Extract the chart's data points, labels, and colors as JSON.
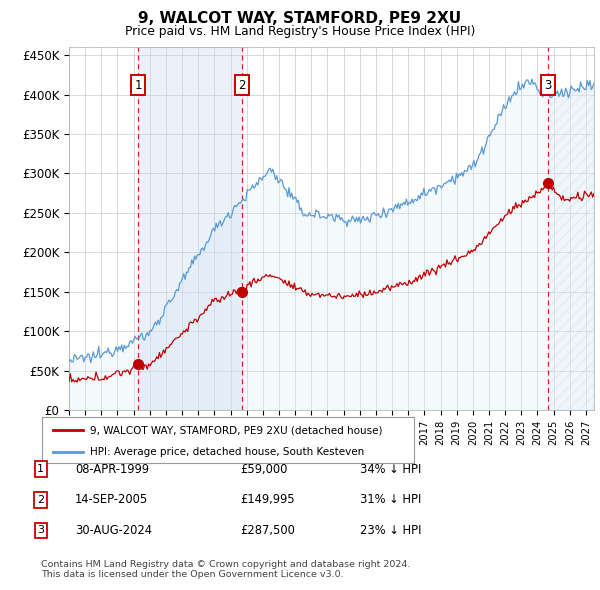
{
  "title": "9, WALCOT WAY, STAMFORD, PE9 2XU",
  "subtitle": "Price paid vs. HM Land Registry's House Price Index (HPI)",
  "ylabel_ticks": [
    "£0",
    "£50K",
    "£100K",
    "£150K",
    "£200K",
    "£250K",
    "£300K",
    "£350K",
    "£400K",
    "£450K"
  ],
  "ytick_values": [
    0,
    50000,
    100000,
    150000,
    200000,
    250000,
    300000,
    350000,
    400000,
    450000
  ],
  "ylim": [
    0,
    460000
  ],
  "xlim_start": 1995.0,
  "xlim_end": 2027.5,
  "sale_dates": [
    1999.27,
    2005.71,
    2024.66
  ],
  "sale_prices": [
    59000,
    149995,
    287500
  ],
  "sale_labels": [
    "1",
    "2",
    "3"
  ],
  "legend_label_red": "9, WALCOT WAY, STAMFORD, PE9 2XU (detached house)",
  "legend_label_blue": "HPI: Average price, detached house, South Kesteven",
  "table_rows": [
    [
      "1",
      "08-APR-1999",
      "£59,000",
      "34% ↓ HPI"
    ],
    [
      "2",
      "14-SEP-2005",
      "£149,995",
      "31% ↓ HPI"
    ],
    [
      "3",
      "30-AUG-2024",
      "£287,500",
      "23% ↓ HPI"
    ]
  ],
  "footer": "Contains HM Land Registry data © Crown copyright and database right 2024.\nThis data is licensed under the Open Government Licence v3.0.",
  "hpi_color": "#5b9bd5",
  "hpi_fill_color": "#d6e8f7",
  "sale_color": "#c00000",
  "vline_color": "#cc0000",
  "bg_color": "#ffffff",
  "grid_color": "#cccccc",
  "shade_between_sales_color": "#dce9f5"
}
